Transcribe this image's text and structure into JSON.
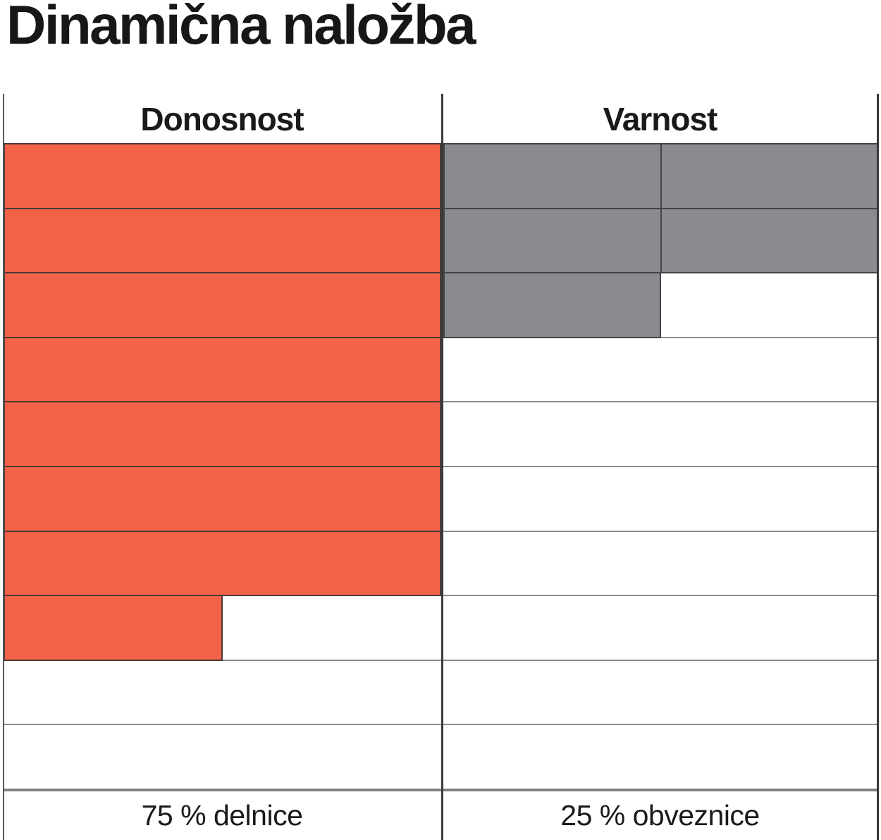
{
  "title": "Dinamična naložba",
  "chart_data": {
    "type": "table",
    "title": "Dinamična naložba",
    "description_visible": "rating grid: 10 rows x 2 half-cells per column; filled area shows share",
    "rows": 10,
    "half_cells_per_row": 2,
    "grid_colors": {
      "light_separator": "#8C8C8C",
      "dark_line": "#3A3A3C",
      "left_border": "#55565A"
    },
    "columns": [
      {
        "key": "donosnost",
        "label": "Donosnost",
        "render": "merged",
        "fill_color": "#F2634A",
        "border_color": "#4E3A32",
        "filled_half_cells": [
          2,
          2,
          2,
          2,
          2,
          2,
          2,
          1,
          0,
          0
        ],
        "filled_total": 15,
        "total": 20,
        "percent": 75,
        "footer": "75 % delnice"
      },
      {
        "key": "varnost",
        "label": "Varnost",
        "render": "split",
        "fill_color": "#8A8B8F",
        "border_color": "#434448",
        "filled_half_cells": [
          2,
          2,
          1,
          0,
          0,
          0,
          0,
          0,
          0,
          0
        ],
        "filled_total": 5,
        "total": 20,
        "percent": 25,
        "footer": "25 % obveznice"
      }
    ]
  }
}
